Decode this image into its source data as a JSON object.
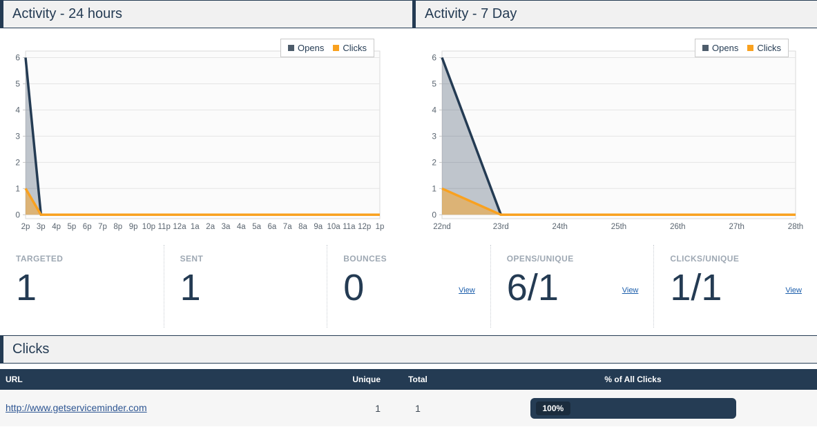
{
  "panels": [
    {
      "title": "Activity - 24 hours"
    },
    {
      "title": "Activity - 7 Day"
    }
  ],
  "chart_data": [
    {
      "type": "area",
      "title": "Activity - 24 hours",
      "categories": [
        "2p",
        "3p",
        "4p",
        "5p",
        "6p",
        "7p",
        "8p",
        "9p",
        "10p",
        "11p",
        "12a",
        "1a",
        "2a",
        "3a",
        "4a",
        "5a",
        "6a",
        "7a",
        "8a",
        "9a",
        "10a",
        "11a",
        "12p",
        "1p"
      ],
      "series": [
        {
          "name": "Opens",
          "color": "#243b53",
          "fill": "rgba(36,59,83,0.28)",
          "values": [
            6,
            0,
            0,
            0,
            0,
            0,
            0,
            0,
            0,
            0,
            0,
            0,
            0,
            0,
            0,
            0,
            0,
            0,
            0,
            0,
            0,
            0,
            0,
            0
          ]
        },
        {
          "name": "Clicks",
          "color": "#f9a11f",
          "fill": "rgba(249,161,31,0.5)",
          "values": [
            1,
            0,
            0,
            0,
            0,
            0,
            0,
            0,
            0,
            0,
            0,
            0,
            0,
            0,
            0,
            0,
            0,
            0,
            0,
            0,
            0,
            0,
            0,
            0
          ]
        }
      ],
      "xlabel": "",
      "ylabel": "",
      "ylim": [
        -0.15,
        6.25
      ],
      "yticks": [
        0,
        1,
        2,
        3,
        4,
        5,
        6
      ],
      "grid": true,
      "legend_position": "top-right"
    },
    {
      "type": "area",
      "title": "Activity - 7 Day",
      "categories": [
        "22nd",
        "23rd",
        "24th",
        "25th",
        "26th",
        "27th",
        "28th"
      ],
      "series": [
        {
          "name": "Opens",
          "color": "#243b53",
          "fill": "rgba(36,59,83,0.28)",
          "values": [
            6,
            0,
            0,
            0,
            0,
            0,
            0
          ]
        },
        {
          "name": "Clicks",
          "color": "#f9a11f",
          "fill": "rgba(249,161,31,0.5)",
          "values": [
            1,
            0,
            0,
            0,
            0,
            0,
            0
          ]
        }
      ],
      "xlabel": "",
      "ylabel": "",
      "ylim": [
        -0.15,
        6.25
      ],
      "yticks": [
        0,
        1,
        2,
        3,
        4,
        5,
        6
      ],
      "grid": true,
      "legend_position": "top-right"
    }
  ],
  "stats": [
    {
      "label": "TARGETED",
      "value": "1"
    },
    {
      "label": "SENT",
      "value": "1"
    },
    {
      "label": "BOUNCES",
      "value": "0",
      "view": "View"
    },
    {
      "label": "OPENS/UNIQUE",
      "value": "6/1",
      "view": "View"
    },
    {
      "label": "CLICKS/UNIQUE",
      "value": "1/1",
      "view": "View"
    }
  ],
  "clicks_section": {
    "title": "Clicks",
    "table": {
      "headers": [
        "URL",
        "Unique",
        "Total",
        "% of All Clicks"
      ],
      "rows": [
        {
          "url": "http://www.getserviceminder.com",
          "unique": "1",
          "total": "1",
          "pct_label": "100%",
          "pct": 100
        }
      ]
    }
  }
}
